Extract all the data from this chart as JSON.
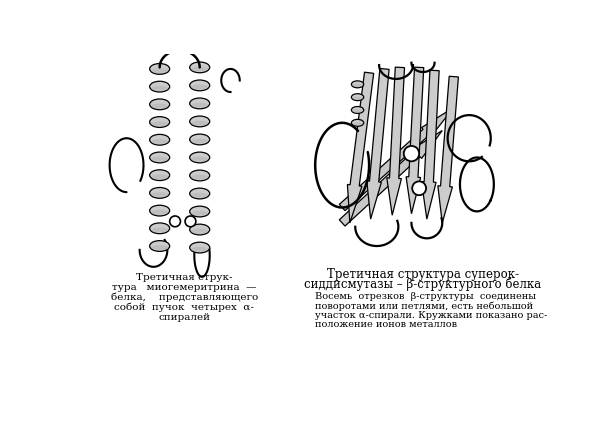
{
  "bg_color": "#ffffff",
  "fig_width": 6.0,
  "fig_height": 4.46,
  "dpi": 100,
  "caption_left_line1": "Третичная струк-",
  "caption_left_line2": "тура   миогемеритрина  —",
  "caption_left_line3": "белка,    представляющего",
  "caption_left_line4": "собой  пучок  четырех  α-",
  "caption_left_line5": "спиралей",
  "caption_right_title1": "Третичная структура суперок-",
  "caption_right_title2": "сиддисмутазы – β-структурного белка",
  "caption_right_body1": "Восемь  отрезков  β-структуры  соединены",
  "caption_right_body2": "поворотами или петлями, есть небольшой",
  "caption_right_body3": "участок α-спирали. Кружками показано рас-",
  "caption_right_body4": "положение ионов металлов",
  "font_size_caption": 7.5,
  "font_size_body": 7.0,
  "font_size_title": 8.5
}
